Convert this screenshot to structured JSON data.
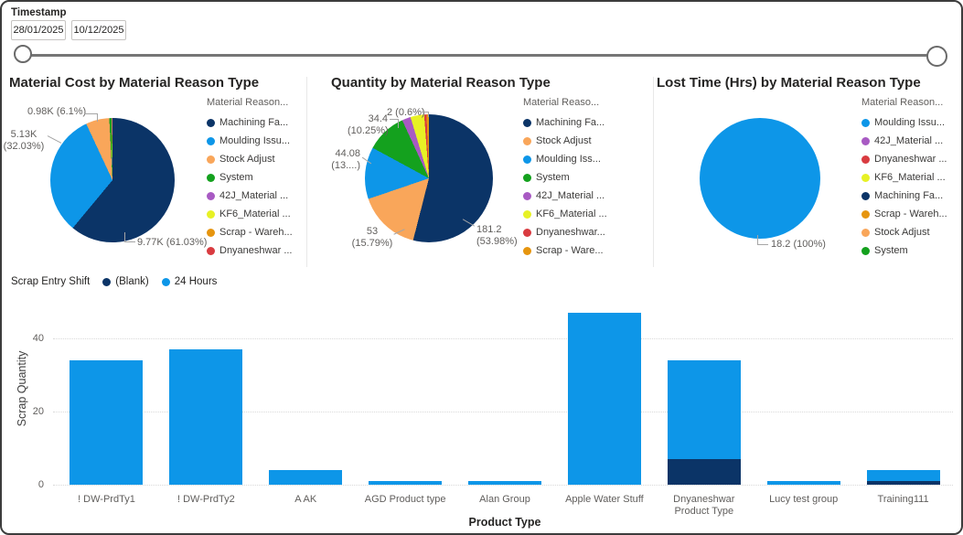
{
  "slicer": {
    "title": "Timestamp",
    "start_date": "28/01/2025",
    "end_date": "10/12/2025"
  },
  "chart_data": [
    {
      "type": "pie",
      "title": "Material Cost by Material Reason Type",
      "legend_title": "Material Reason...",
      "legend_position": "right",
      "slices": [
        {
          "name": "Machining Fa...",
          "value": "9.77K",
          "percent": 61.03,
          "color": "#0b3467"
        },
        {
          "name": "Moulding Issu...",
          "value": "5.13K",
          "percent": 32.03,
          "color": "#0d96e8"
        },
        {
          "name": "Stock Adjust",
          "value": "0.98K",
          "percent": 6.1,
          "color": "#f9a65a"
        },
        {
          "name": "System",
          "value": "",
          "percent": 0.6,
          "color": "#14a11e"
        },
        {
          "name": "42J_Material ...",
          "value": "",
          "percent": 0.08,
          "color": "#a85ac3"
        },
        {
          "name": "KF6_Material ...",
          "value": "",
          "percent": 0.06,
          "color": "#e7f125"
        },
        {
          "name": "Scrap - Wareh...",
          "value": "",
          "percent": 0.05,
          "color": "#e6950f"
        },
        {
          "name": "Dnyaneshwar ...",
          "value": "",
          "percent": 0.05,
          "color": "#d93b40"
        }
      ],
      "callouts": [
        {
          "lines": [
            "0.98K (6.1%)",
            ""
          ]
        },
        {
          "lines": [
            "5.13K",
            "(32.03%)"
          ]
        },
        {
          "lines": [
            "9.77K (61.03%)",
            ""
          ]
        }
      ]
    },
    {
      "type": "pie",
      "title": "Quantity by Material Reason Type",
      "legend_title": "Material Reaso...",
      "legend_position": "right",
      "slices": [
        {
          "name": "Machining Fa...",
          "value": "181.2",
          "percent": 53.98,
          "color": "#0b3467"
        },
        {
          "name": "Stock Adjust",
          "value": "53",
          "percent": 15.79,
          "color": "#f9a65a"
        },
        {
          "name": "Moulding Iss...",
          "value": "44.08",
          "percent": 13.13,
          "color": "#0d96e8"
        },
        {
          "name": "System",
          "value": "34.4",
          "percent": 10.25,
          "color": "#14a11e"
        },
        {
          "name": "42J_Material ...",
          "value": "",
          "percent": 2.2,
          "color": "#a85ac3"
        },
        {
          "name": "KF6_Material ...",
          "value": "",
          "percent": 3.45,
          "color": "#e7f125"
        },
        {
          "name": "Dnyaneshwar...",
          "value": "2",
          "percent": 0.6,
          "color": "#d93b40"
        },
        {
          "name": "Scrap - Ware...",
          "value": "",
          "percent": 0.6,
          "color": "#e6950f"
        }
      ],
      "callouts": [
        {
          "lines": [
            "2 (0.6%)",
            ""
          ]
        },
        {
          "lines": [
            "34.4",
            "(10.25%)"
          ]
        },
        {
          "lines": [
            "44.08",
            "(13....)"
          ]
        },
        {
          "lines": [
            "53",
            "(15.79%)"
          ]
        },
        {
          "lines": [
            "181.2",
            "(53.98%)"
          ]
        }
      ]
    },
    {
      "type": "pie",
      "title": "Lost Time (Hrs) by Material Reason Type",
      "legend_title": "Material Reason...",
      "legend_position": "right",
      "slices": [
        {
          "name": "Moulding Issu...",
          "value": "18.2",
          "percent": 100,
          "color": "#0d96e8"
        },
        {
          "name": "42J_Material ...",
          "value": "",
          "percent": 0,
          "color": "#a85ac3"
        },
        {
          "name": "Dnyaneshwar ...",
          "value": "",
          "percent": 0,
          "color": "#d93b40"
        },
        {
          "name": "KF6_Material ...",
          "value": "",
          "percent": 0,
          "color": "#e7f125"
        },
        {
          "name": "Machining Fa...",
          "value": "",
          "percent": 0,
          "color": "#0b3467"
        },
        {
          "name": "Scrap - Wareh...",
          "value": "",
          "percent": 0,
          "color": "#e6950f"
        },
        {
          "name": "Stock Adjust",
          "value": "",
          "percent": 0,
          "color": "#f9a65a"
        },
        {
          "name": "System",
          "value": "",
          "percent": 0,
          "color": "#14a11e"
        }
      ],
      "callouts": [
        {
          "lines": [
            "18.2 (100%)",
            ""
          ]
        }
      ]
    },
    {
      "type": "bar",
      "stacked": true,
      "legend_title": "Scrap Entry Shift",
      "xlabel": "Product Type",
      "ylabel": "Scrap Quantity",
      "ylim": [
        0,
        47
      ],
      "yticks": [
        0,
        20,
        40
      ],
      "grid": "dotted horizontal",
      "categories": [
        "! DW-PrdTy1",
        "! DW-PrdTy2",
        "A AK",
        "AGD Product type",
        "Alan Group",
        "Apple Water Stuff",
        "Dnyaneshwar Product Type",
        "Lucy test group",
        "Training111"
      ],
      "series": [
        {
          "name": "(Blank)",
          "color": "#0b3467",
          "values": [
            0,
            0,
            0,
            0,
            0,
            0,
            7,
            0,
            1
          ]
        },
        {
          "name": "24 Hours",
          "color": "#0d96e8",
          "values": [
            34,
            37,
            4,
            1,
            1,
            47,
            27,
            1,
            3
          ]
        }
      ]
    }
  ]
}
